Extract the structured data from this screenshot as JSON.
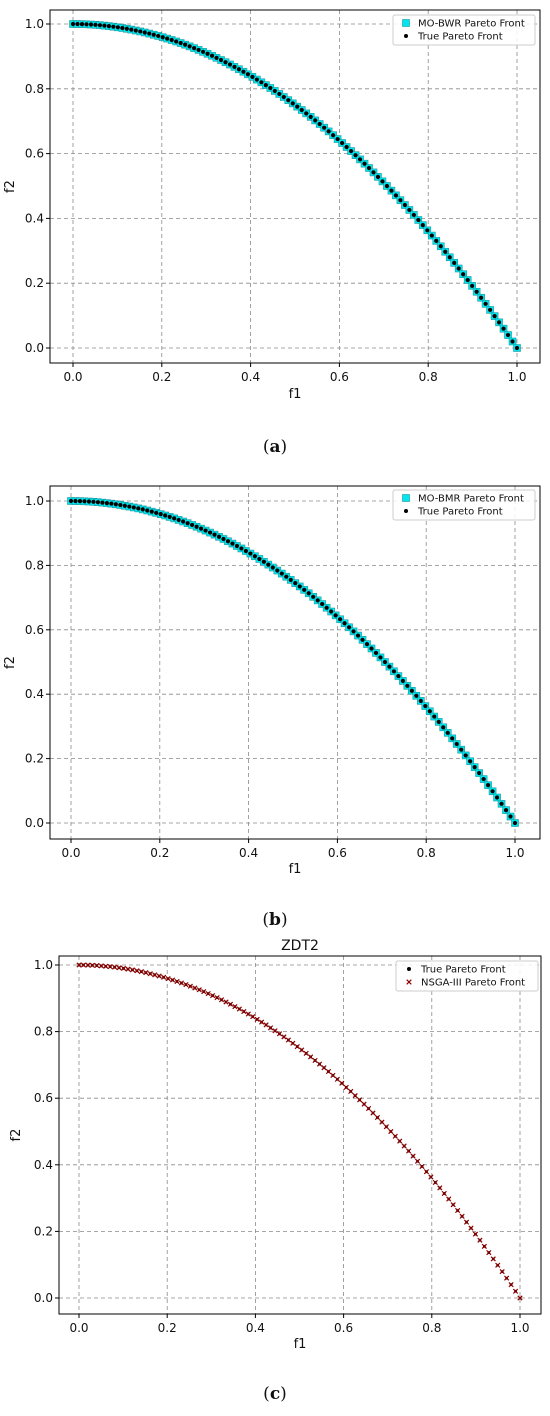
{
  "chart_data": [
    {
      "type": "scatter",
      "title": "",
      "caption": {
        "open": "(",
        "letter": "a",
        "close": ")"
      },
      "xlabel": "f1",
      "ylabel": "f2",
      "xlim": [
        -0.05,
        1.05
      ],
      "ylim": [
        -0.05,
        1.05
      ],
      "xticks": [
        "0.0",
        "0.2",
        "0.4",
        "0.6",
        "0.8",
        "1.0"
      ],
      "yticks": [
        "0.0",
        "0.2",
        "0.4",
        "0.6",
        "0.8",
        "1.0"
      ],
      "grid": true,
      "legend_position": "top-right",
      "function": "f2 = 1 - f1^2",
      "series": [
        {
          "name": "MO-BWR Pareto Front",
          "marker": "square",
          "color": "#00e5ee",
          "edge": "#1a9aa0",
          "points": 100,
          "x_range": [
            0,
            1
          ]
        },
        {
          "name": "True Pareto Front",
          "marker": "dot",
          "color": "#000000",
          "points": 100,
          "x_range": [
            0,
            1
          ]
        }
      ]
    },
    {
      "type": "scatter",
      "title": "",
      "caption": {
        "open": "(",
        "letter": "b",
        "close": ")"
      },
      "xlabel": "f1",
      "ylabel": "f2",
      "xlim": [
        -0.05,
        1.05
      ],
      "ylim": [
        -0.05,
        1.05
      ],
      "xticks": [
        "0.0",
        "0.2",
        "0.4",
        "0.6",
        "0.8",
        "1.0"
      ],
      "yticks": [
        "0.0",
        "0.2",
        "0.4",
        "0.6",
        "0.8",
        "1.0"
      ],
      "grid": true,
      "legend_position": "top-right",
      "function": "f2 = 1 - f1^2",
      "series": [
        {
          "name": "MO-BMR Pareto Front",
          "marker": "square",
          "color": "#00e5ee",
          "edge": "#1a9aa0",
          "points": 100,
          "x_range": [
            0,
            1
          ]
        },
        {
          "name": "True Pareto Front",
          "marker": "dot",
          "color": "#000000",
          "points": 100,
          "x_range": [
            0,
            1
          ]
        }
      ]
    },
    {
      "type": "scatter",
      "title": "ZDT2",
      "caption": {
        "open": "(",
        "letter": "c",
        "close": ")"
      },
      "xlabel": "f1",
      "ylabel": "f2",
      "xlim": [
        -0.05,
        1.05
      ],
      "ylim": [
        -0.05,
        1.05
      ],
      "xticks": [
        "0.0",
        "0.2",
        "0.4",
        "0.6",
        "0.8",
        "1.0"
      ],
      "yticks": [
        "0.0",
        "0.2",
        "0.4",
        "0.6",
        "0.8",
        "1.0"
      ],
      "grid": true,
      "legend_position": "top-right",
      "function": "f2 = 1 - f1^2",
      "series": [
        {
          "name": "True Pareto Front",
          "marker": "dot",
          "color": "#000000",
          "points": 100,
          "x_range": [
            0,
            1
          ]
        },
        {
          "name": "NSGA-III Pareto Front",
          "marker": "x",
          "color": "#8b0000",
          "points": 100,
          "x_range": [
            0,
            1
          ]
        }
      ]
    }
  ]
}
